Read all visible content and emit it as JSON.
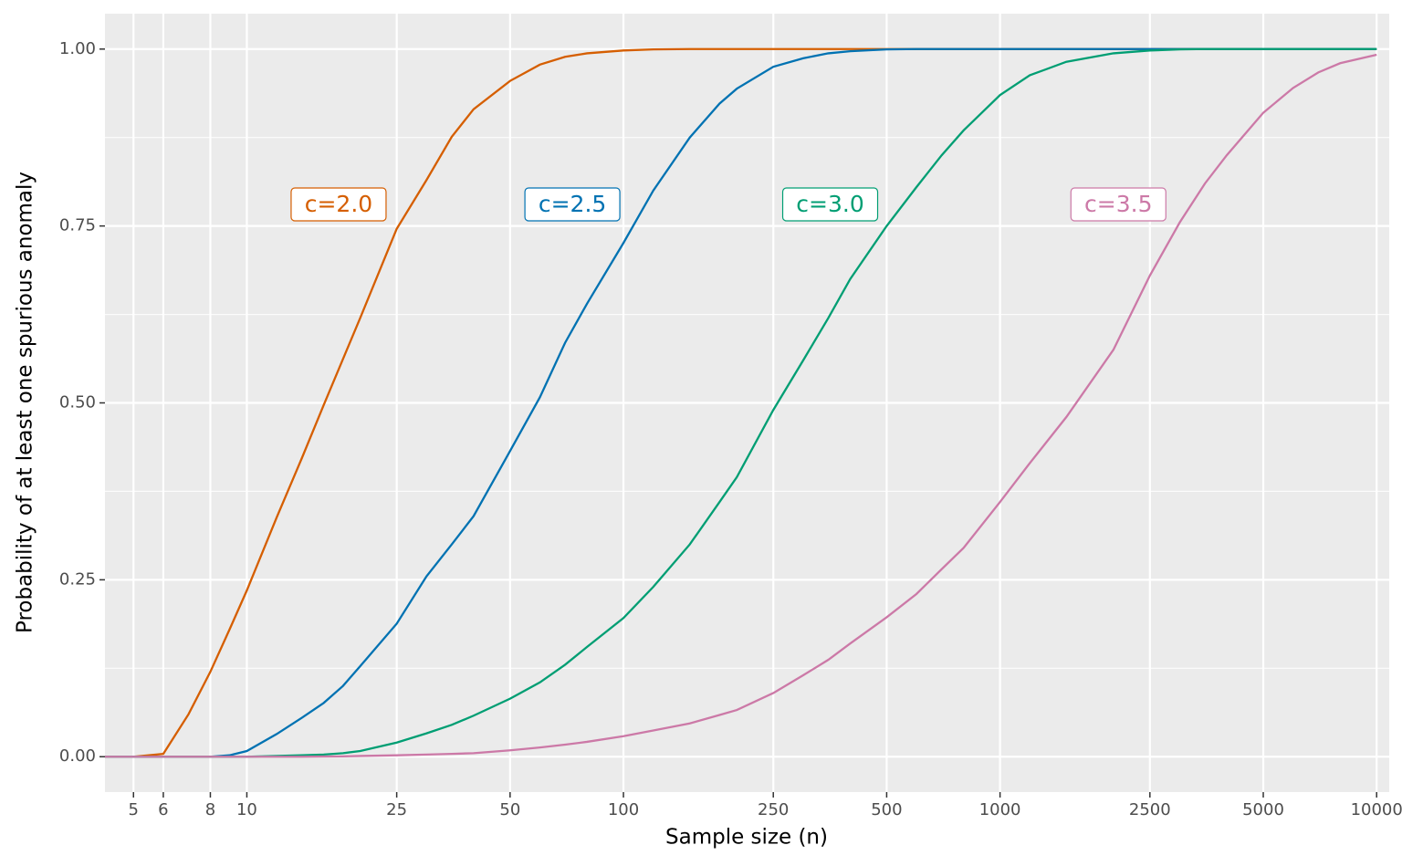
{
  "chart_data": {
    "type": "line",
    "x_label": "Sample size (n)",
    "y_label": "Probability of at least one spurious anomaly",
    "xscale": "log",
    "xlim": [
      4.2,
      10800
    ],
    "ylim": [
      -0.05,
      1.05
    ],
    "xticks": [
      5,
      6,
      8,
      10,
      25,
      50,
      100,
      250,
      500,
      1000,
      2500,
      5000,
      10000
    ],
    "yticks": [
      {
        "value": 0,
        "label": "0.00"
      },
      {
        "value": 0.25,
        "label": "0.25"
      },
      {
        "value": 0.5,
        "label": "0.50"
      },
      {
        "value": 0.75,
        "label": "0.75"
      },
      {
        "value": 1,
        "label": "1.00"
      }
    ],
    "grid": true,
    "x": [
      4,
      5,
      6,
      7,
      8,
      9,
      10,
      12,
      14,
      16,
      18,
      20,
      25,
      30,
      35,
      40,
      50,
      60,
      70,
      80,
      100,
      120,
      150,
      180,
      200,
      250,
      300,
      350,
      400,
      500,
      600,
      700,
      800,
      1000,
      1200,
      1500,
      2000,
      2500,
      3000,
      3500,
      4000,
      5000,
      6000,
      7000,
      8000,
      10000
    ],
    "series": [
      {
        "name": "c=2.0",
        "color": "#D55E00",
        "values": [
          0,
          0,
          0.004,
          0.06,
          0.12,
          0.18,
          0.235,
          0.338,
          0.422,
          0.497,
          0.562,
          0.62,
          0.746,
          0.815,
          0.876,
          0.915,
          0.955,
          0.978,
          0.989,
          0.994,
          0.998,
          0.9995,
          1,
          1,
          1,
          1,
          1,
          1,
          1,
          1,
          1,
          1,
          1,
          1,
          1,
          1,
          1,
          1,
          1,
          1,
          1,
          1,
          1,
          1,
          1,
          1
        ]
      },
      {
        "name": "c=2.5",
        "color": "#0072B2",
        "values": [
          0,
          0,
          0,
          0,
          0,
          0.002,
          0.008,
          0.032,
          0.055,
          0.076,
          0.1,
          0.128,
          0.188,
          0.255,
          0.3,
          0.34,
          0.432,
          0.508,
          0.585,
          0.64,
          0.726,
          0.8,
          0.875,
          0.923,
          0.944,
          0.975,
          0.987,
          0.994,
          0.997,
          0.9995,
          1,
          1,
          1,
          1,
          1,
          1,
          1,
          1,
          1,
          1,
          1,
          1,
          1,
          1,
          1,
          1
        ]
      },
      {
        "name": "c=3.0",
        "color": "#009E73",
        "values": [
          0,
          0,
          0,
          0,
          0,
          0,
          0,
          0.001,
          0.002,
          0.003,
          0.005,
          0.008,
          0.02,
          0.033,
          0.045,
          0.058,
          0.082,
          0.105,
          0.13,
          0.155,
          0.196,
          0.24,
          0.3,
          0.36,
          0.395,
          0.49,
          0.56,
          0.62,
          0.675,
          0.75,
          0.805,
          0.85,
          0.885,
          0.935,
          0.963,
          0.982,
          0.994,
          0.998,
          0.9995,
          1,
          1,
          1,
          1,
          1,
          1,
          1
        ]
      },
      {
        "name": "c=3.5",
        "color": "#CC79A7",
        "values": [
          0,
          0,
          0,
          0,
          0,
          0,
          0,
          0,
          0,
          0.0003,
          0.0005,
          0.001,
          0.002,
          0.003,
          0.004,
          0.005,
          0.009,
          0.013,
          0.017,
          0.021,
          0.029,
          0.037,
          0.047,
          0.059,
          0.066,
          0.09,
          0.115,
          0.137,
          0.16,
          0.197,
          0.23,
          0.265,
          0.295,
          0.36,
          0.415,
          0.48,
          0.575,
          0.68,
          0.755,
          0.81,
          0.85,
          0.91,
          0.945,
          0.967,
          0.98,
          0.992
        ]
      }
    ]
  }
}
